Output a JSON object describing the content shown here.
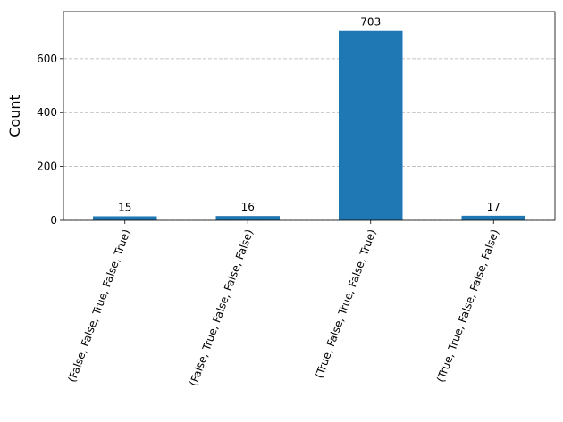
{
  "chart_data": {
    "type": "bar",
    "y_label": "Count",
    "categories": [
      "(False, False, True, False, True)",
      "(False, True, False, False, False)",
      "(True, False, True, False, True)",
      "(True, True, False, False, False)"
    ],
    "values": [
      15,
      16,
      703,
      17
    ],
    "color": "#1f77b4",
    "ylim": [
      0,
      775
    ],
    "yticks": [
      0,
      200,
      400,
      600
    ],
    "grid": true
  }
}
